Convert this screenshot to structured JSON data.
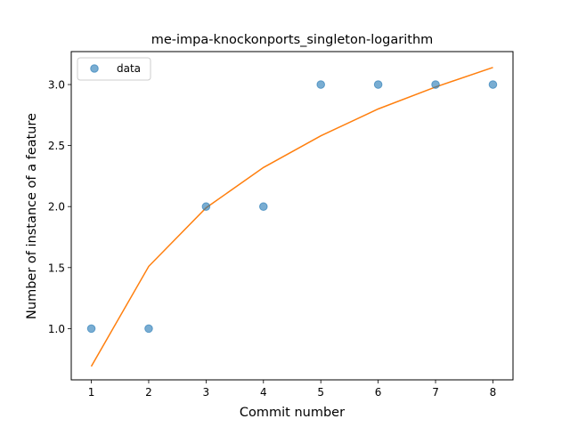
{
  "chart_data": {
    "type": "scatter",
    "title": "me-impa-knockonports_singleton-logarithm",
    "xlabel": "Commit number",
    "ylabel": "Number of instance of a feature",
    "xlim": [
      0.65,
      8.35
    ],
    "ylim": [
      0.58,
      3.27
    ],
    "x_ticks": [
      1,
      2,
      3,
      4,
      5,
      6,
      7,
      8
    ],
    "y_ticks": [
      1.0,
      1.5,
      2.0,
      2.5,
      3.0
    ],
    "y_tick_labels": [
      "1.0",
      "1.5",
      "2.0",
      "2.5",
      "3.0"
    ],
    "grid": false,
    "legend_position": "upper-left",
    "series": [
      {
        "name": "data",
        "kind": "points",
        "color": "#1f77b4",
        "x": [
          1,
          2,
          3,
          4,
          5,
          6,
          7,
          8
        ],
        "y": [
          1,
          1,
          2,
          2,
          3,
          3,
          3,
          3
        ]
      },
      {
        "kind": "line",
        "color": "#ff7f0e",
        "x": [
          1,
          2,
          3,
          4,
          5,
          6,
          7,
          8
        ],
        "y": [
          0.69,
          1.51,
          1.99,
          2.32,
          2.58,
          2.8,
          2.98,
          3.14
        ]
      }
    ]
  }
}
